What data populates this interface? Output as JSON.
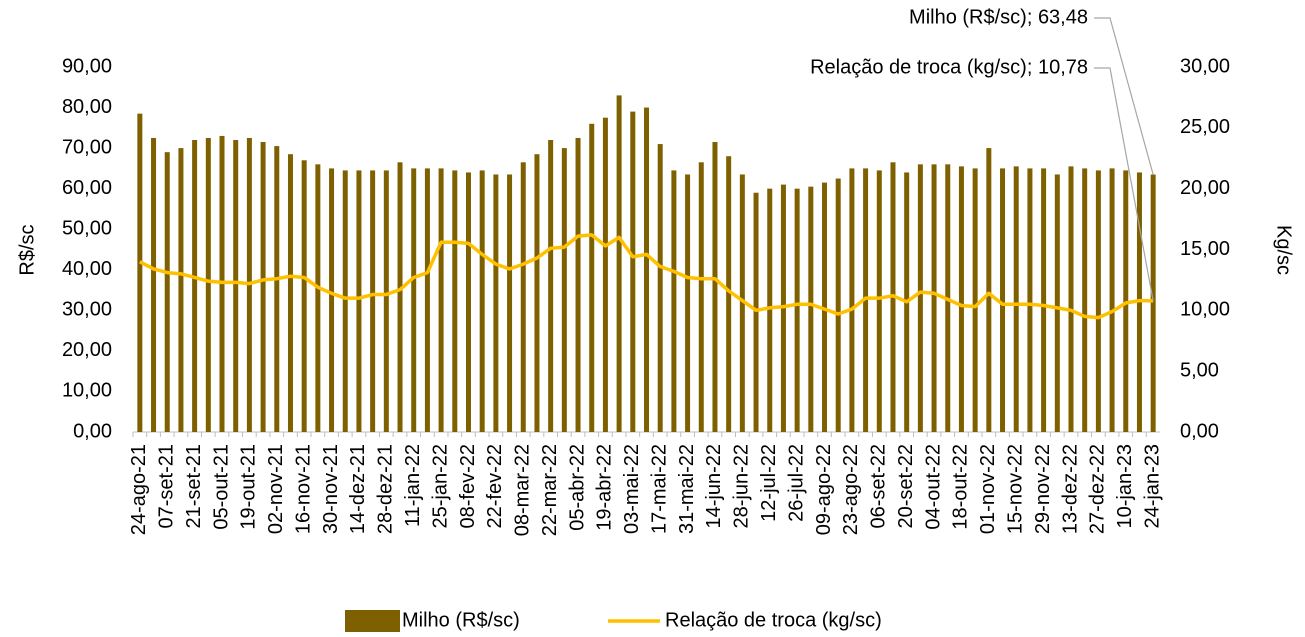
{
  "chart_data": {
    "type": "bar_line",
    "categories": [
      "24-ago-21",
      null,
      "07-set-21",
      null,
      "21-set-21",
      null,
      "05-out-21",
      null,
      "19-out-21",
      null,
      "02-nov-21",
      null,
      "16-nov-21",
      null,
      "30-nov-21",
      null,
      "14-dez-21",
      null,
      "28-dez-21",
      null,
      "11-jan-22",
      null,
      "25-jan-22",
      null,
      "08-fev-22",
      null,
      "22-fev-22",
      null,
      "08-mar-22",
      null,
      "22-mar-22",
      null,
      "05-abr-22",
      null,
      "19-abr-22",
      null,
      "03-mai-22",
      null,
      "17-mai-22",
      null,
      "31-mai-22",
      null,
      "14-jun-22",
      null,
      "28-jun-22",
      null,
      "12-jul-22",
      null,
      "26-jul-22",
      null,
      "09-ago-22",
      null,
      "23-ago-22",
      null,
      "06-set-22",
      null,
      "20-set-22",
      null,
      "04-out-22",
      null,
      "18-out-22",
      null,
      "01-nov-22",
      null,
      "15-nov-22",
      null,
      "29-nov-22",
      null,
      "13-dez-22",
      null,
      "27-dez-22",
      null,
      "10-jan-23",
      null,
      "24-jan-23"
    ],
    "series": [
      {
        "name": "Milho (R$/sc)",
        "type": "bar",
        "color": "#7f6000",
        "values": [
          78.5,
          72.5,
          69,
          70,
          72,
          72.5,
          73,
          72,
          72.5,
          71.5,
          70.5,
          68.5,
          67,
          66,
          65,
          64.5,
          64.5,
          64.5,
          64.5,
          66.5,
          65,
          65,
          65,
          64.5,
          64,
          64.5,
          63.5,
          63.5,
          66.5,
          68.5,
          72,
          70,
          72.5,
          76,
          77.5,
          83,
          79,
          80,
          71,
          64.5,
          63.5,
          66.5,
          71.5,
          68,
          63.5,
          59,
          60,
          61,
          60,
          60.5,
          61.5,
          62.5,
          65,
          65,
          64.5,
          66.5,
          64,
          66,
          66,
          66,
          65.5,
          65,
          70,
          65,
          65.5,
          65,
          65,
          63.5,
          65.5,
          65,
          64.5,
          65,
          64.5,
          64,
          63.48
        ]
      },
      {
        "name": "Relação de troca (kg/sc)",
        "type": "line",
        "axis": "y2",
        "color": "#ffc000",
        "values": [
          14.0,
          13.4,
          13.1,
          13.0,
          12.7,
          12.4,
          12.3,
          12.3,
          12.2,
          12.5,
          12.6,
          12.8,
          12.7,
          11.9,
          11.4,
          11.0,
          11.0,
          11.3,
          11.3,
          11.7,
          12.7,
          13.1,
          15.6,
          15.6,
          15.5,
          14.6,
          13.8,
          13.4,
          13.8,
          14.3,
          15.1,
          15.2,
          16.1,
          16.2,
          15.3,
          16.0,
          14.4,
          14.6,
          13.6,
          13.2,
          12.7,
          12.6,
          12.6,
          11.6,
          10.8,
          10.0,
          10.2,
          10.3,
          10.5,
          10.5,
          10.1,
          9.7,
          10.1,
          11.0,
          11.0,
          11.2,
          10.7,
          11.5,
          11.4,
          10.9,
          10.4,
          10.3,
          11.4,
          10.5,
          10.5,
          10.5,
          10.4,
          10.2,
          10.0,
          9.5,
          9.4,
          9.9,
          10.6,
          10.8,
          10.78
        ]
      }
    ],
    "ylabel": "R$/sc",
    "y2label": "Kg/sc",
    "ylim": [
      0,
      90
    ],
    "yticks": [
      {
        "value": 0,
        "label": "0,00"
      },
      {
        "value": 10,
        "label": "10,00"
      },
      {
        "value": 20,
        "label": "20,00"
      },
      {
        "value": 30,
        "label": "30,00"
      },
      {
        "value": 40,
        "label": "40,00"
      },
      {
        "value": 50,
        "label": "50,00"
      },
      {
        "value": 60,
        "label": "60,00"
      },
      {
        "value": 70,
        "label": "70,00"
      },
      {
        "value": 80,
        "label": "80,00"
      },
      {
        "value": 90,
        "label": "90,00"
      }
    ],
    "y2lim": [
      0,
      30
    ],
    "y2ticks": [
      {
        "value": 0,
        "label": "0,00"
      },
      {
        "value": 5,
        "label": "5,00"
      },
      {
        "value": 10,
        "label": "10,00"
      },
      {
        "value": 15,
        "label": "15,00"
      },
      {
        "value": 20,
        "label": "20,00"
      },
      {
        "value": 25,
        "label": "25,00"
      },
      {
        "value": 30,
        "label": "30,00"
      }
    ],
    "annotations": [
      "Milho (R$/sc); 63,48",
      "Relação de troca (kg/sc); 10,78"
    ],
    "legend": "bottom"
  }
}
